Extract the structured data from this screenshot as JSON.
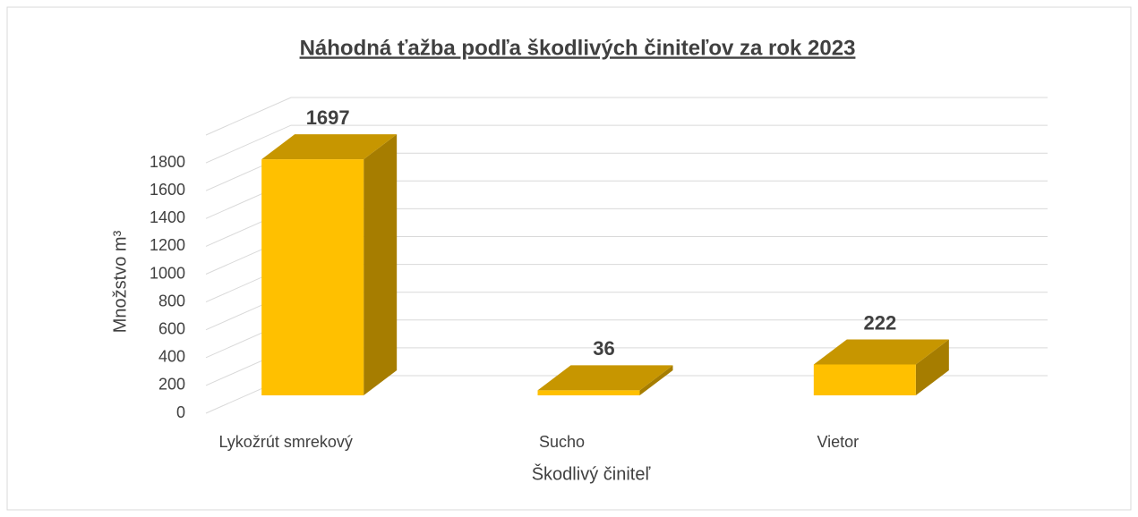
{
  "chart_data": {
    "type": "bar3d",
    "title": "Náhodná ťažba podľa škodlivých činiteľov za rok 2023",
    "x_label": "Škodlivý činiteľ",
    "y_label": "Množstvo m³",
    "categories": [
      "Lykožrút smrekový",
      "Sucho",
      "Vietor"
    ],
    "values": [
      1697,
      36,
      222
    ],
    "color": "#ffc000",
    "ylim": [
      0,
      2000
    ],
    "yticks": [
      0,
      200,
      400,
      600,
      800,
      1000,
      1200,
      1400,
      1600,
      1800
    ],
    "grid": true
  }
}
